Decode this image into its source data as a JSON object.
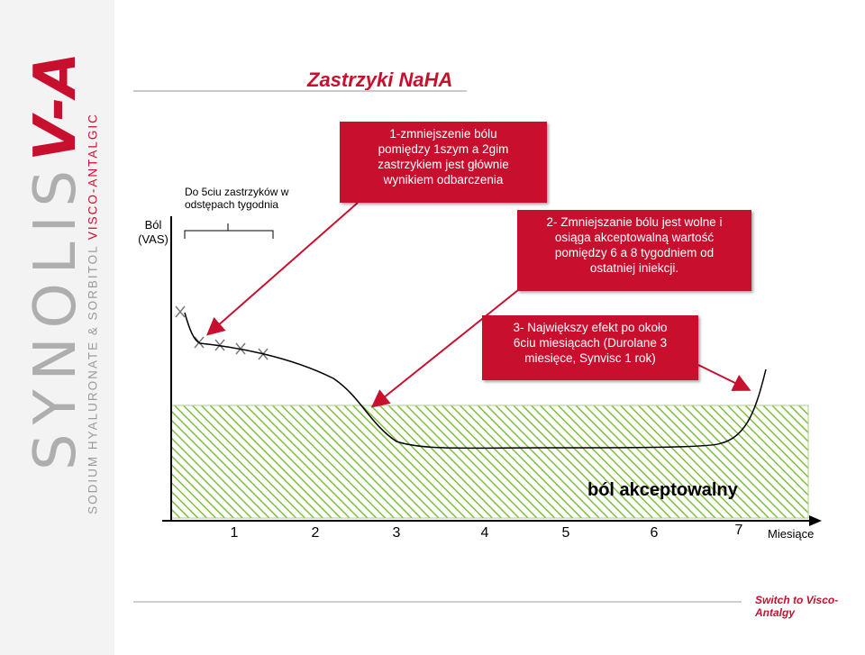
{
  "brand": {
    "name_main": "SYNOLIS",
    "name_accent": "V-A",
    "subtitle_gray": "SODIUM HYALURONATE & SORBITOL ",
    "subtitle_red": "VISCO-ANTALGIC"
  },
  "title": "Zastrzyki NaHA",
  "y_axis_label": [
    "Ból",
    "(VAS)"
  ],
  "injection_note": [
    "Do 5ciu zastrzyków w",
    "odstępach tygodnia"
  ],
  "boxes": {
    "box1": [
      "1-zmniejszenie bólu",
      "pomiędzy 1szym a 2gim",
      "zastrzykiem jest głównie",
      "wynikiem odbarczenia"
    ],
    "box2": [
      "2- Zmniejszanie bólu jest wolne i",
      "osiąga akceptowalną wartość",
      "pomiędzy 6 a 8 tygodniem od",
      "ostatniej iniekcji."
    ],
    "box3": [
      "3- Największy efekt po około",
      "6ciu miesiącach (Durolane 3",
      "miesięce, Synvisc 1 rok)"
    ]
  },
  "acceptable_zone_label": "ból akceptowalny",
  "x_axis_name": "Miesiące",
  "x_ticks": [
    "1",
    "2",
    "3",
    "4",
    "5",
    "6",
    "7"
  ],
  "footer": "Switch to Visco-Antalgy",
  "colors": {
    "accent": "#c8102e",
    "zone_fill": "#7fbf3f",
    "arrow": "#c8102e"
  }
}
